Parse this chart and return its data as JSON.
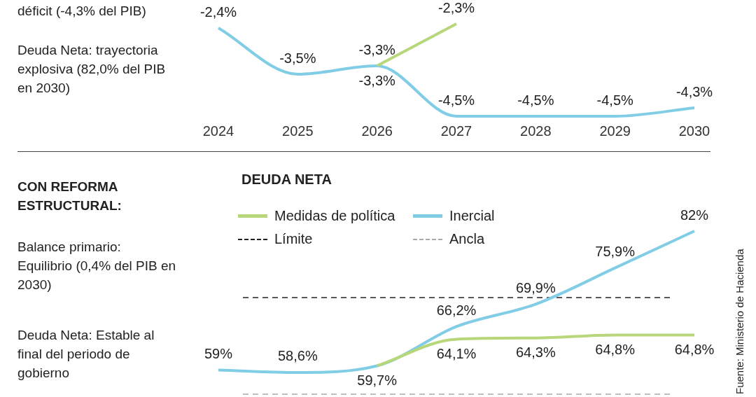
{
  "chart_data": [
    {
      "type": "line",
      "categories": [
        "2024",
        "2025",
        "2026",
        "2027",
        "2028",
        "2029",
        "2030"
      ],
      "series": [
        {
          "color": "#b7d77a",
          "values": [
            null,
            null,
            -3.3,
            -2.3,
            null,
            null,
            null
          ],
          "value_labels": [
            null,
            null,
            "-3,3%",
            "-2,3%",
            null,
            null,
            null
          ]
        },
        {
          "color": "#80cde5",
          "values": [
            -2.4,
            -3.5,
            -3.3,
            -4.5,
            -4.5,
            -4.5,
            -4.3
          ],
          "value_labels": [
            "-2,4%",
            "-3,5%",
            "-3,3%",
            "-4,5%",
            "-4,5%",
            "-4,5%",
            "-4,3%"
          ]
        }
      ],
      "annotations": [
        "déficit (-4,3% del PIB)",
        "Deuda Neta: trayectoria explosiva (82,0% del PIB en 2030)"
      ],
      "tick_labels": "x",
      "grid": false,
      "legend": false
    },
    {
      "type": "line",
      "title": "DEUDA NETA",
      "categories": [
        null,
        null,
        null,
        null,
        null,
        null,
        null
      ],
      "series": [
        {
          "name": "Medidas de política",
          "color": "#b7d77a",
          "values": [
            null,
            null,
            59.7,
            64.1,
            64.3,
            64.8,
            64.8
          ],
          "value_labels": [
            null,
            null,
            null,
            "64,1%",
            "64,3%",
            "64,8%",
            "64,8%"
          ]
        },
        {
          "name": "Inercial",
          "color": "#80cde5",
          "values": [
            59,
            58.6,
            59.7,
            66.2,
            69.9,
            75.9,
            82
          ],
          "value_labels": [
            "59%",
            "58,6%",
            "59,7%",
            "66,2%",
            "69,9%",
            "75,9%",
            "82%"
          ]
        }
      ],
      "ref_lines": [
        {
          "axis": "y",
          "value": 71,
          "label": "Límite",
          "color": "#222222",
          "line_style": "dashed"
        },
        {
          "axis": "y",
          "value": 55,
          "label": "Ancla",
          "color": "#aaaaaa",
          "line_style": "dashed"
        }
      ],
      "annotations": [
        "CON REFORMA ESTRUCTURAL:",
        "Balance primario: Equilibrio (0,4% del PIB en 2030)",
        "Deuda Neta: Estable al final del periodo de gobierno",
        "Fuente: Ministerio de Hacienda"
      ],
      "tick_labels": false,
      "grid": false,
      "legend": "top left"
    }
  ]
}
